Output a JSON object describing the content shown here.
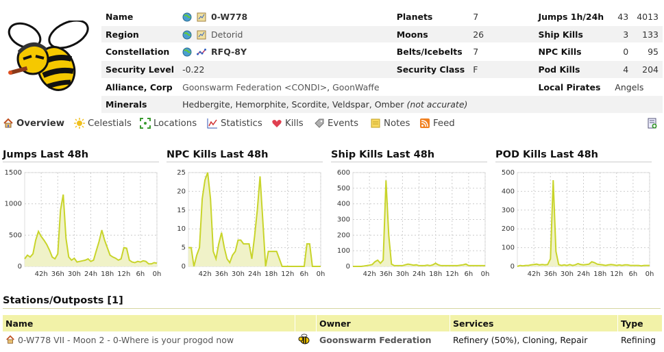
{
  "system": {
    "name_label": "Name",
    "name": "0-W778",
    "region_label": "Region",
    "region": "Detorid",
    "constellation_label": "Constellation",
    "constellation": "RFQ-8Y",
    "security_label": "Security Level",
    "security": "-0.22",
    "alliance_label": "Alliance, Corp",
    "alliance": "Goonswarm Federation <CONDI>",
    "alliance_sep": ", ",
    "corp": "GoonWaffe",
    "minerals_label": "Minerals",
    "minerals": "Hedbergite, Hemorphite, Scordite, Veldspar, Omber",
    "minerals_note": "(not accurate)",
    "planets_label": "Planets",
    "planets": "7",
    "moons_label": "Moons",
    "moons": "26",
    "belts_label": "Belts/Icebelts",
    "belts": "7",
    "secclass_label": "Security Class",
    "secclass": "F",
    "jumps_label": "Jumps 1h/24h",
    "jumps_1h": "43",
    "jumps_24h": "4013",
    "shipkills_label": "Ship Kills",
    "shipkills_1h": "3",
    "shipkills_24h": "133",
    "npckills_label": "NPC Kills",
    "npckills_1h": "0",
    "npckills_24h": "95",
    "podkills_label": "Pod Kills",
    "podkills_1h": "4",
    "podkills_24h": "204",
    "pirates_label": "Local Pirates",
    "pirates": "Angels"
  },
  "tabs": [
    {
      "label": "Overview",
      "icon": "home-icon"
    },
    {
      "label": "Celestials",
      "icon": "sun-icon"
    },
    {
      "label": "Locations",
      "icon": "locations-icon"
    },
    {
      "label": "Statistics",
      "icon": "statistics-icon"
    },
    {
      "label": "Kills",
      "icon": "heart-icon"
    },
    {
      "label": "Events",
      "icon": "tag-icon"
    },
    {
      "label": "Notes",
      "icon": "notes-icon"
    },
    {
      "label": "Feed",
      "icon": "rss-icon"
    }
  ],
  "colors": {
    "series_line": "#c8d42a",
    "series_fill": "#f0f2c8",
    "table_header": "#f2f2a8",
    "row_alt": "#f2f2f2"
  },
  "chart_data": [
    {
      "type": "area",
      "title": "Jumps Last 48h",
      "x_ticks": [
        "42h",
        "36h",
        "30h",
        "24h",
        "18h",
        "12h",
        "6h",
        "0h"
      ],
      "ylim": [
        0,
        1500
      ],
      "y_ticks": [
        0,
        500,
        1000,
        1500
      ],
      "grid": true,
      "x": [
        48,
        47,
        46,
        45,
        44,
        43,
        42,
        41,
        40,
        39,
        38,
        37,
        36,
        35,
        34,
        33,
        32,
        31,
        30,
        29,
        28,
        27,
        26,
        25,
        24,
        23,
        22,
        21,
        20,
        19,
        18,
        17,
        16,
        15,
        14,
        13,
        12,
        11,
        10,
        9,
        8,
        7,
        6,
        5,
        4,
        3,
        2,
        1,
        0
      ],
      "values": [
        120,
        180,
        150,
        200,
        420,
        560,
        480,
        420,
        350,
        260,
        150,
        120,
        200,
        900,
        1150,
        450,
        150,
        100,
        130,
        70,
        80,
        90,
        100,
        120,
        80,
        100,
        250,
        400,
        580,
        420,
        300,
        180,
        150,
        130,
        100,
        120,
        300,
        290,
        100,
        70,
        60,
        80,
        70,
        90,
        80,
        40,
        40,
        60,
        50
      ]
    },
    {
      "type": "area",
      "title": "NPC Kills Last 48h",
      "x_ticks": [
        "42h",
        "36h",
        "30h",
        "24h",
        "18h",
        "12h",
        "6h",
        "0h"
      ],
      "ylim": [
        0,
        25
      ],
      "y_ticks": [
        0,
        5,
        10,
        15,
        20,
        25
      ],
      "grid": true,
      "x": [
        48,
        47,
        46,
        45,
        44,
        43,
        42,
        41,
        40,
        39,
        38,
        37,
        36,
        35,
        34,
        33,
        32,
        31,
        30,
        29,
        28,
        27,
        26,
        25,
        24,
        23,
        22,
        21,
        20,
        19,
        18,
        17,
        16,
        15,
        14,
        13,
        12,
        11,
        10,
        9,
        8,
        7,
        6,
        5,
        4,
        3,
        2,
        1,
        0
      ],
      "values": [
        5,
        5,
        0,
        3,
        5,
        18,
        23,
        25,
        18,
        4,
        2,
        6,
        9,
        5,
        2,
        1,
        3,
        4,
        7,
        7,
        6,
        6,
        6,
        2,
        8,
        15,
        24,
        12,
        0,
        4,
        4,
        4,
        4,
        2,
        0,
        0,
        0,
        0,
        0,
        0,
        0,
        0,
        0,
        6,
        6,
        0,
        0,
        0,
        0
      ]
    },
    {
      "type": "area",
      "title": "Ship Kills Last 48h",
      "x_ticks": [
        "42h",
        "36h",
        "30h",
        "24h",
        "18h",
        "12h",
        "6h",
        "0h"
      ],
      "ylim": [
        0,
        600
      ],
      "y_ticks": [
        0,
        100,
        200,
        300,
        400,
        500,
        600
      ],
      "grid": true,
      "x": [
        48,
        47,
        46,
        45,
        44,
        43,
        42,
        41,
        40,
        39,
        38,
        37,
        36,
        35,
        34,
        33,
        32,
        31,
        30,
        29,
        28,
        27,
        26,
        25,
        24,
        23,
        22,
        21,
        20,
        19,
        18,
        17,
        16,
        15,
        14,
        13,
        12,
        11,
        10,
        9,
        8,
        7,
        6,
        5,
        4,
        3,
        2,
        1,
        0
      ],
      "values": [
        0,
        0,
        0,
        0,
        2,
        5,
        8,
        12,
        30,
        40,
        20,
        40,
        550,
        200,
        15,
        5,
        5,
        5,
        5,
        10,
        15,
        12,
        8,
        10,
        5,
        5,
        5,
        8,
        5,
        10,
        20,
        10,
        5,
        5,
        5,
        5,
        5,
        5,
        5,
        8,
        10,
        15,
        5,
        5,
        5,
        5,
        5,
        5,
        5
      ]
    },
    {
      "type": "area",
      "title": "POD Kills Last 48h",
      "x_ticks": [
        "42h",
        "36h",
        "30h",
        "24h",
        "18h",
        "12h",
        "6h",
        "0h"
      ],
      "ylim": [
        0,
        500
      ],
      "y_ticks": [
        0,
        100,
        200,
        300,
        400,
        500
      ],
      "grid": true,
      "x": [
        48,
        47,
        46,
        45,
        44,
        43,
        42,
        41,
        40,
        39,
        38,
        37,
        36,
        35,
        34,
        33,
        32,
        31,
        30,
        29,
        28,
        27,
        26,
        25,
        24,
        23,
        22,
        21,
        20,
        19,
        18,
        17,
        16,
        15,
        14,
        13,
        12,
        11,
        10,
        9,
        8,
        7,
        6,
        5,
        4,
        3,
        2,
        1,
        0
      ],
      "values": [
        0,
        5,
        3,
        5,
        5,
        8,
        10,
        12,
        8,
        10,
        8,
        10,
        40,
        460,
        80,
        10,
        5,
        8,
        5,
        10,
        5,
        8,
        15,
        10,
        8,
        10,
        12,
        25,
        20,
        12,
        10,
        8,
        5,
        8,
        10,
        8,
        5,
        8,
        5,
        8,
        8,
        5,
        5,
        5,
        5,
        3,
        5,
        5,
        5
      ]
    }
  ],
  "stations": {
    "title": "Stations/Outposts [1]",
    "headers": {
      "name": "Name",
      "owner": "Owner",
      "services": "Services",
      "type": "Type"
    },
    "rows": [
      {
        "name": "0-W778 VII - Moon 2 - 0-Where is your progod now",
        "owner": "Goonswarm Federation",
        "services": "Refinery (50%), Cloning, Repair",
        "type": "Refining"
      }
    ]
  }
}
